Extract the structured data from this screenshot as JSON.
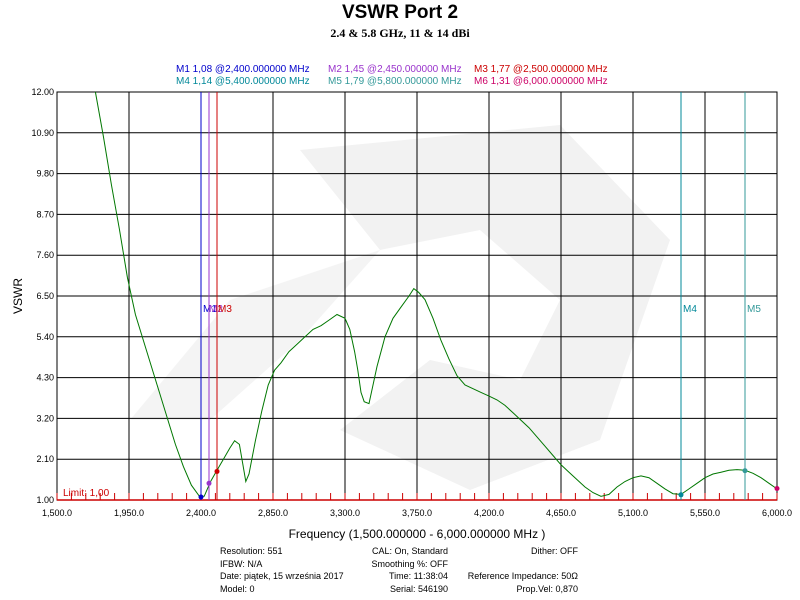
{
  "title": "VSWR Port 2",
  "subtitle": "2.4 & 5.8 GHz, 11 & 14 dBi",
  "markers_text": [
    {
      "label": "M1 1,08 @2,400.000000 MHz",
      "color": "#0000cc"
    },
    {
      "label": "M2 1,45 @2,450.000000 MHz",
      "color": "#9933cc"
    },
    {
      "label": "M3 1,77 @2,500.000000 MHz",
      "color": "#cc0000"
    },
    {
      "label": "M4 1,14 @5,400.000000 MHz",
      "color": "#008899"
    },
    {
      "label": "M5 1,79 @5,800.000000 MHz",
      "color": "#339999"
    },
    {
      "label": "M6 1,31 @6,000.000000 MHz",
      "color": "#cc0066"
    }
  ],
  "chart_data": {
    "type": "line",
    "ylabel": "VSWR",
    "xlabel": "Frequency (1,500.000000 - 6,000.000000 MHz )",
    "xlim": [
      1500,
      6000
    ],
    "ylim": [
      1.0,
      12.0
    ],
    "x_ticks": [
      "1,500.0",
      "1,950.0",
      "2,400.0",
      "2,850.0",
      "3,300.0",
      "3,750.0",
      "4,200.0",
      "4,650.0",
      "5,100.0",
      "5,550.0",
      "6,000.0"
    ],
    "y_ticks": [
      "1.00",
      "2.10",
      "3.20",
      "4.30",
      "5.40",
      "6.50",
      "7.60",
      "8.70",
      "9.80",
      "10.90",
      "12.00"
    ],
    "grid": true,
    "limit_label": "Limit: 1,00",
    "series": [
      {
        "color": "#007700",
        "x": [
          1740,
          1790,
          1840,
          1890,
          1940,
          1990,
          2040,
          2090,
          2140,
          2190,
          2240,
          2290,
          2340,
          2390,
          2420,
          2460,
          2500,
          2540,
          2580,
          2610,
          2640,
          2660,
          2680,
          2700,
          2740,
          2780,
          2820,
          2860,
          2900,
          2950,
          3000,
          3050,
          3100,
          3150,
          3200,
          3250,
          3300,
          3330,
          3360,
          3380,
          3400,
          3420,
          3450,
          3500,
          3550,
          3600,
          3650,
          3700,
          3730,
          3760,
          3800,
          3850,
          3900,
          3950,
          4000,
          4050,
          4100,
          4150,
          4200,
          4250,
          4300,
          4350,
          4400,
          4450,
          4500,
          4550,
          4600,
          4650,
          4700,
          4750,
          4800,
          4850,
          4900,
          4950,
          5000,
          5050,
          5100,
          5150,
          5200,
          5250,
          5300,
          5350,
          5400,
          5450,
          5500,
          5550,
          5600,
          5650,
          5700,
          5750,
          5800,
          5850,
          5900,
          5950,
          6000
        ],
        "y": [
          12.0,
          10.8,
          9.5,
          8.3,
          7.0,
          6.0,
          5.3,
          4.6,
          3.9,
          3.2,
          2.5,
          1.9,
          1.4,
          1.1,
          1.1,
          1.5,
          1.8,
          2.1,
          2.4,
          2.6,
          2.5,
          2.0,
          1.5,
          1.7,
          2.6,
          3.4,
          4.1,
          4.5,
          4.7,
          5.0,
          5.2,
          5.4,
          5.6,
          5.7,
          5.85,
          6.0,
          5.9,
          5.6,
          5.0,
          4.5,
          3.9,
          3.65,
          3.6,
          4.6,
          5.4,
          5.9,
          6.2,
          6.5,
          6.7,
          6.6,
          6.4,
          5.9,
          5.3,
          4.8,
          4.35,
          4.1,
          4.0,
          3.9,
          3.8,
          3.7,
          3.55,
          3.35,
          3.15,
          2.95,
          2.7,
          2.45,
          2.2,
          1.95,
          1.75,
          1.55,
          1.35,
          1.2,
          1.1,
          1.15,
          1.35,
          1.5,
          1.6,
          1.65,
          1.6,
          1.45,
          1.3,
          1.17,
          1.15,
          1.3,
          1.45,
          1.6,
          1.7,
          1.75,
          1.8,
          1.82,
          1.8,
          1.72,
          1.6,
          1.45,
          1.3
        ]
      }
    ],
    "markers": [
      {
        "name": "M1",
        "x": 2400,
        "y": 1.08,
        "color": "#0000cc",
        "show_label": true
      },
      {
        "name": "M2",
        "x": 2450,
        "y": 1.45,
        "color": "#9933cc",
        "show_label": true
      },
      {
        "name": "M3",
        "x": 2500,
        "y": 1.77,
        "color": "#cc0000",
        "show_label": true
      },
      {
        "name": "M4",
        "x": 5400,
        "y": 1.14,
        "color": "#008899",
        "show_label": true
      },
      {
        "name": "M5",
        "x": 5800,
        "y": 1.79,
        "color": "#339999",
        "show_label": true
      },
      {
        "name": "M6",
        "x": 6000,
        "y": 1.31,
        "color": "#cc0066",
        "show_label": false
      }
    ]
  },
  "info": {
    "col1": [
      "Resolution: 551",
      "IFBW: N/A",
      "Date: piątek, 15 września 2017",
      "Model: 0"
    ],
    "col2": [
      "CAL: On, Standard",
      "Smoothing %:  OFF",
      "Time: 11:38:04",
      "Serial: 546190"
    ],
    "col3": [
      "Dither:  OFF",
      "",
      "Reference Impedance: 50Ω",
      "Prop.Vel: 0,870"
    ]
  }
}
